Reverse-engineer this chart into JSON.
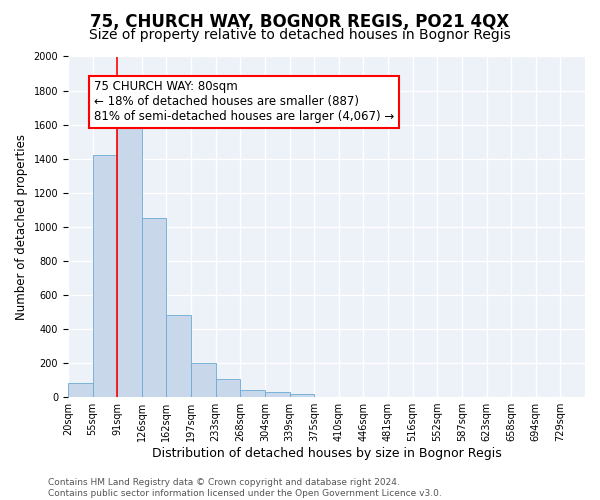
{
  "title1": "75, CHURCH WAY, BOGNOR REGIS, PO21 4QX",
  "title2": "Size of property relative to detached houses in Bognor Regis",
  "xlabel": "Distribution of detached houses by size in Bognor Regis",
  "ylabel": "Number of detached properties",
  "bin_labels": [
    "20sqm",
    "55sqm",
    "91sqm",
    "126sqm",
    "162sqm",
    "197sqm",
    "233sqm",
    "268sqm",
    "304sqm",
    "339sqm",
    "375sqm",
    "410sqm",
    "446sqm",
    "481sqm",
    "516sqm",
    "552sqm",
    "587sqm",
    "623sqm",
    "658sqm",
    "694sqm",
    "729sqm"
  ],
  "bar_heights": [
    80,
    1420,
    1620,
    1050,
    480,
    200,
    105,
    40,
    28,
    20,
    0,
    0,
    0,
    0,
    0,
    0,
    0,
    0,
    0,
    0,
    0
  ],
  "bar_color": "#c8d8ea",
  "bar_edge_color": "#6aaad4",
  "bg_color": "#edf2f9",
  "grid_color": "white",
  "vline_bin_index": 2,
  "vline_color": "red",
  "annotation_text": "75 CHURCH WAY: 80sqm\n← 18% of detached houses are smaller (887)\n81% of semi-detached houses are larger (4,067) →",
  "annotation_box_color": "white",
  "annotation_box_edge": "red",
  "ylim": [
    0,
    2000
  ],
  "yticks": [
    0,
    200,
    400,
    600,
    800,
    1000,
    1200,
    1400,
    1600,
    1800,
    2000
  ],
  "footer": "Contains HM Land Registry data © Crown copyright and database right 2024.\nContains public sector information licensed under the Open Government Licence v3.0.",
  "title1_fontsize": 12,
  "title2_fontsize": 10,
  "xlabel_fontsize": 9,
  "ylabel_fontsize": 8.5,
  "tick_fontsize": 7,
  "annotation_fontsize": 8.5,
  "footer_fontsize": 6.5
}
